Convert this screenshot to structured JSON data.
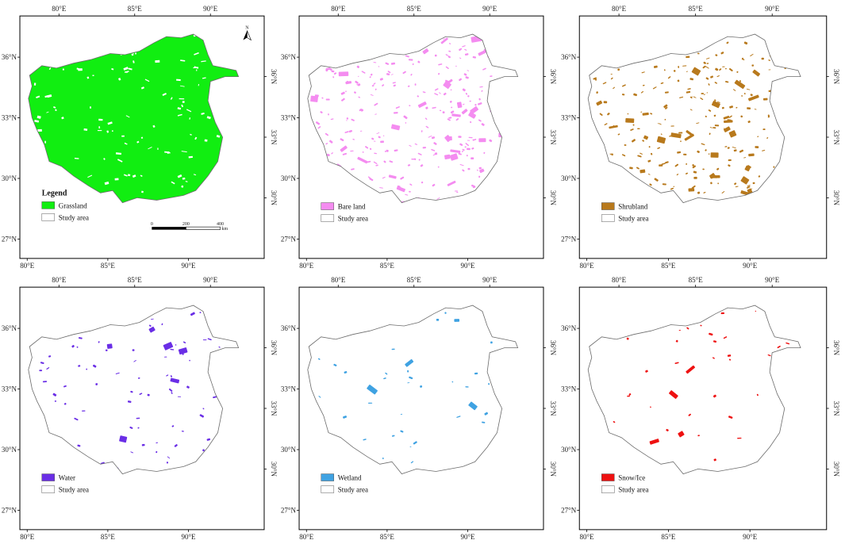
{
  "ticks": {
    "top": [
      "80°E",
      "85°E",
      "90°E"
    ],
    "bottom": [
      "80°E",
      "85°E",
      "90°E"
    ],
    "left": [
      "36°N",
      "33°N",
      "30°N",
      "27°N"
    ],
    "right": [
      "36°N",
      "33°N",
      "30°N"
    ]
  },
  "legend": {
    "title": "Legend",
    "study_area": "Study area"
  },
  "north_label": "N",
  "scalebar": {
    "labels": [
      "0",
      "200",
      "400"
    ],
    "unit": "km"
  },
  "colors": {
    "outline": "#6b6b6b",
    "frame": "#000000"
  },
  "panels": [
    {
      "id": "grassland",
      "class_label": "Grassland",
      "color": "#11ee11",
      "coverage": "very high",
      "show_extras": true
    },
    {
      "id": "bare-land",
      "class_label": "Bare land",
      "color": "#f48cf0",
      "coverage": "moderate",
      "show_extras": false
    },
    {
      "id": "shrubland",
      "class_label": "Shrubland",
      "color": "#b8791c",
      "coverage": "moderate",
      "show_extras": false
    },
    {
      "id": "water",
      "class_label": "Water",
      "color": "#6a2ee6",
      "coverage": "low",
      "show_extras": false
    },
    {
      "id": "wetland",
      "class_label": "Wetland",
      "color": "#3fa2e2",
      "coverage": "very low",
      "show_extras": false
    },
    {
      "id": "snow-ice",
      "class_label": "Snow/Ice",
      "color": "#ee1111",
      "coverage": "very low",
      "show_extras": false
    }
  ]
}
